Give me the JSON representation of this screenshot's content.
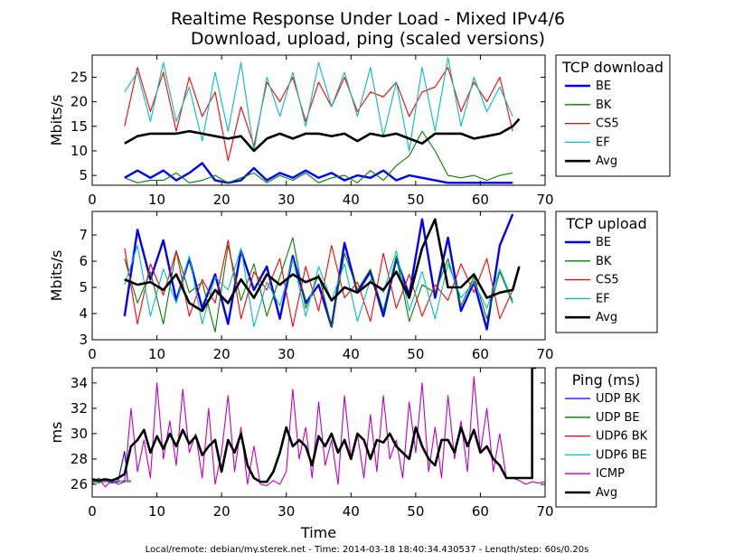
{
  "title_line1": "Realtime Response Under Load - Mixed IPv4/6",
  "title_line2": "Download, upload, ping (scaled versions)",
  "footer": "Local/remote: debian/my.sterek.net - Time: 2014-03-18 18:40:34.430537 - Length/step: 60s/0.20s",
  "colors": {
    "BE": "#0000ff",
    "BK": "#008000",
    "CS5": "#ff0000",
    "EF": "#00bfbf",
    "UDP BK": "#0000ff",
    "UDP BE": "#008000",
    "UDP6 BK": "#ff0000",
    "UDP6 BE": "#00bfbf",
    "ICMP": "#bf00bf",
    "Avg": "#000000"
  },
  "chart_data": [
    {
      "type": "line",
      "ylabel": "Mbits/s",
      "xlabel": "",
      "xlim": [
        0,
        70
      ],
      "ylim": [
        3,
        29.5
      ],
      "xticks": [
        "0",
        "10",
        "20",
        "30",
        "40",
        "50",
        "60",
        "70"
      ],
      "yticks": [
        "5",
        "10",
        "15",
        "20",
        "25"
      ],
      "legend_title": "TCP download",
      "legend_position": "outside-right",
      "series": [
        {
          "name": "BE",
          "x": [
            5,
            7,
            9,
            11,
            13,
            15,
            17,
            19,
            21,
            23,
            25,
            27,
            29,
            31,
            33,
            35,
            37,
            39,
            41,
            43,
            45,
            47,
            49,
            51,
            53,
            55,
            57,
            59,
            61,
            63,
            65
          ],
          "values": [
            4.5,
            6,
            4.5,
            6,
            4,
            5.5,
            7.5,
            4,
            3.5,
            4,
            6.5,
            4,
            5.5,
            4.5,
            6,
            4.5,
            5.5,
            4,
            5,
            4.5,
            6,
            4,
            5,
            4.5,
            4,
            3.5,
            3.5,
            3.5,
            3.5,
            3.5,
            3.5
          ]
        },
        {
          "name": "BK",
          "x": [
            5,
            7,
            9,
            11,
            13,
            15,
            17,
            19,
            21,
            23,
            25,
            27,
            29,
            31,
            33,
            35,
            37,
            39,
            41,
            43,
            45,
            47,
            49,
            51,
            53,
            55,
            57,
            59,
            61,
            63,
            65
          ],
          "values": [
            4.5,
            3.5,
            4,
            4,
            5.5,
            3.5,
            4,
            5,
            3.5,
            4.5,
            5.5,
            3.5,
            5,
            4,
            5.5,
            3.5,
            4.5,
            5,
            3.5,
            6,
            4,
            7,
            9,
            14,
            10,
            5,
            4.5,
            5,
            4,
            5,
            5.5
          ]
        },
        {
          "name": "CS5",
          "x": [
            5,
            7,
            9,
            11,
            13,
            15,
            17,
            19,
            21,
            23,
            25,
            27,
            29,
            31,
            33,
            35,
            37,
            39,
            41,
            43,
            45,
            47,
            49,
            51,
            53,
            55,
            57,
            59,
            61,
            63,
            65
          ],
          "values": [
            15,
            27,
            18,
            26,
            14,
            25,
            17,
            22,
            8,
            19,
            11,
            24,
            20,
            25,
            16,
            24,
            19,
            25,
            18,
            22,
            21,
            24,
            17,
            22,
            23,
            27,
            18,
            24,
            20,
            25,
            14
          ]
        },
        {
          "name": "EF",
          "x": [
            5,
            7,
            9,
            11,
            13,
            15,
            17,
            19,
            21,
            23,
            25,
            27,
            29,
            31,
            33,
            35,
            37,
            39,
            41,
            43,
            45,
            47,
            49,
            51,
            53,
            55,
            57,
            59,
            61,
            63,
            65
          ],
          "values": [
            22,
            26,
            16,
            28,
            16,
            23,
            12,
            26,
            14,
            28,
            10,
            25,
            17,
            26,
            15,
            28,
            19,
            26,
            17,
            27,
            13,
            24,
            10,
            27,
            14,
            29,
            15,
            25,
            18,
            23,
            17
          ]
        },
        {
          "name": "Avg",
          "x": [
            5,
            7,
            9,
            11,
            13,
            15,
            17,
            19,
            21,
            23,
            25,
            27,
            29,
            31,
            33,
            35,
            37,
            39,
            41,
            43,
            45,
            47,
            49,
            51,
            53,
            55,
            57,
            59,
            61,
            63,
            65,
            66
          ],
          "values": [
            11.5,
            13,
            13.5,
            13.5,
            13.5,
            14,
            13.5,
            13,
            12.5,
            13,
            10,
            12.5,
            13.5,
            12.5,
            13.5,
            13.5,
            13,
            13.5,
            12,
            13.5,
            13,
            13.5,
            12.5,
            11.5,
            13.5,
            13.5,
            13.5,
            12.5,
            13,
            13.5,
            15,
            16.5
          ]
        }
      ]
    },
    {
      "type": "line",
      "ylabel": "Mbits/s",
      "xlabel": "",
      "xlim": [
        0,
        70
      ],
      "ylim": [
        3,
        7.9
      ],
      "xticks": [
        "0",
        "10",
        "20",
        "30",
        "40",
        "50",
        "60",
        "70"
      ],
      "yticks": [
        "3",
        "4",
        "5",
        "6",
        "7"
      ],
      "legend_title": "TCP upload",
      "legend_position": "outside-right",
      "series": [
        {
          "name": "BE",
          "x": [
            5,
            7,
            9,
            11,
            13,
            15,
            17,
            19,
            21,
            23,
            25,
            27,
            29,
            31,
            33,
            35,
            37,
            39,
            41,
            43,
            45,
            47,
            49,
            51,
            53,
            55,
            57,
            59,
            61,
            63,
            65
          ],
          "values": [
            3.9,
            7.2,
            5.3,
            6.8,
            4.5,
            6.1,
            4.2,
            5.5,
            3.6,
            6.4,
            4.9,
            5.8,
            3.8,
            6.2,
            4.4,
            5.1,
            3.5,
            6.7,
            4.8,
            5.6,
            3.9,
            6.1,
            4.7,
            7.6,
            4.6,
            6.9,
            4.1,
            5.2,
            3.4,
            6.6,
            7.8
          ]
        },
        {
          "name": "BK",
          "x": [
            5,
            7,
            9,
            11,
            13,
            15,
            17,
            19,
            21,
            23,
            25,
            27,
            29,
            31,
            33,
            35,
            37,
            39,
            41,
            43,
            45,
            47,
            49,
            51,
            53,
            55,
            57,
            59,
            61,
            63,
            65
          ],
          "values": [
            6.1,
            4.4,
            5.6,
            3.6,
            6.4,
            4.8,
            5.2,
            3.3,
            6.6,
            4.5,
            5.9,
            3.9,
            5.4,
            6.9,
            4.2,
            5.5,
            3.5,
            6.3,
            4.9,
            5.7,
            4.1,
            6.2,
            3.7,
            5.1,
            4.8,
            6.1,
            4.3,
            5.4,
            3.8,
            5.6,
            4.4
          ]
        },
        {
          "name": "CS5",
          "x": [
            5,
            7,
            9,
            11,
            13,
            15,
            17,
            19,
            21,
            23,
            25,
            27,
            29,
            31,
            33,
            35,
            37,
            39,
            41,
            43,
            45,
            47,
            49,
            51,
            53,
            55,
            57,
            59,
            61,
            63,
            65
          ],
          "values": [
            6.5,
            3.6,
            5.9,
            4.7,
            6.4,
            3.9,
            5.3,
            4.4,
            6.8,
            3.8,
            5.6,
            4.9,
            6.1,
            3.5,
            5.8,
            4.1,
            6.6,
            4.6,
            5.2,
            3.7,
            6.3,
            4.2,
            5.5,
            3.9,
            5.1,
            4.5,
            5.9,
            4.8,
            6.1,
            3.8,
            4.9
          ]
        },
        {
          "name": "EF",
          "x": [
            5,
            7,
            9,
            11,
            13,
            15,
            17,
            19,
            21,
            23,
            25,
            27,
            29,
            31,
            33,
            35,
            37,
            39,
            41,
            43,
            45,
            47,
            49,
            51,
            53,
            55,
            57,
            59,
            61,
            63,
            65
          ],
          "values": [
            5.1,
            6.6,
            3.9,
            5.7,
            4.4,
            6.2,
            3.6,
            5.4,
            4.9,
            6.5,
            3.5,
            5.2,
            4.3,
            6.1,
            3.9,
            5.8,
            4.5,
            5.9,
            3.7,
            5.3,
            4.8,
            6.4,
            4.1,
            5.6,
            3.8,
            5.9,
            4.6,
            5.2,
            4.2,
            5.7,
            4.5
          ]
        },
        {
          "name": "Avg",
          "x": [
            5,
            7,
            9,
            11,
            13,
            15,
            17,
            19,
            21,
            23,
            25,
            27,
            29,
            31,
            33,
            35,
            37,
            39,
            41,
            43,
            45,
            47,
            49,
            51,
            53,
            55,
            57,
            59,
            61,
            63,
            65,
            66
          ],
          "values": [
            5.3,
            5.1,
            5.2,
            4.9,
            5.5,
            4.4,
            4.1,
            4.9,
            4.4,
            5.3,
            4.6,
            5.5,
            5.1,
            5.5,
            5.2,
            5.4,
            4.5,
            5.0,
            4.8,
            5.2,
            4.9,
            5.6,
            4.6,
            6.5,
            7.6,
            5.0,
            5.0,
            5.5,
            4.6,
            4.8,
            4.9,
            5.8
          ]
        }
      ]
    },
    {
      "type": "line",
      "ylabel": "ms",
      "xlabel": "Time",
      "xlim": [
        0,
        70
      ],
      "ylim": [
        25,
        35.2
      ],
      "xticks": [
        "0",
        "10",
        "20",
        "30",
        "40",
        "50",
        "60",
        "70"
      ],
      "yticks": [
        "26",
        "28",
        "30",
        "32",
        "34"
      ],
      "legend_title": "Ping (ms)",
      "legend_position": "outside-right",
      "series": [
        {
          "name": "UDP BK",
          "x": [
            0,
            1,
            2,
            3,
            4,
            5,
            5.5,
            6
          ],
          "values": [
            26.3,
            26.2,
            26.3,
            26.1,
            26.2,
            28.6,
            26.2,
            26.3
          ]
        },
        {
          "name": "UDP BE",
          "x": [
            0,
            1,
            2,
            3,
            4,
            5,
            6
          ],
          "values": [
            26.3,
            26.1,
            26.3,
            26.2,
            26.3,
            26.2,
            26.3
          ]
        },
        {
          "name": "UDP6 BK",
          "x": [
            0,
            1,
            2,
            3,
            4,
            5,
            6
          ],
          "values": [
            26.2,
            26.3,
            26.2,
            26.3,
            26.2,
            26.3,
            26.2
          ]
        },
        {
          "name": "UDP6 BE",
          "x": [
            0,
            1,
            2,
            3,
            4,
            5,
            6
          ],
          "values": [
            26.3,
            26.2,
            26.3,
            26.2,
            26.3,
            26.2,
            26.3
          ]
        },
        {
          "name": "ICMP",
          "x": [
            0,
            1,
            2,
            3,
            4,
            5,
            6,
            7,
            8,
            9,
            10,
            11,
            12,
            13,
            14,
            15,
            16,
            17,
            18,
            19,
            20,
            21,
            22,
            23,
            24,
            25,
            26,
            27,
            28,
            29,
            30,
            31,
            32,
            33,
            34,
            35,
            36,
            37,
            38,
            39,
            40,
            41,
            42,
            43,
            44,
            45,
            46,
            47,
            48,
            49,
            50,
            51,
            52,
            53,
            54,
            55,
            56,
            57,
            58,
            59,
            60,
            61,
            62,
            63,
            64,
            65,
            66,
            67,
            68,
            69,
            70
          ],
          "values": [
            26.0,
            26.5,
            25.8,
            26.3,
            26.0,
            26.2,
            32.0,
            27.0,
            29.5,
            26.5,
            34.0,
            28.0,
            31.0,
            27.5,
            33.5,
            28.5,
            30.0,
            26.5,
            32.0,
            26.0,
            28.5,
            33.0,
            27.0,
            30.5,
            26.0,
            29.0,
            26.0,
            25.9,
            26.3,
            26.0,
            27.0,
            33.5,
            28.0,
            30.5,
            26.5,
            32.5,
            27.5,
            29.5,
            26.0,
            33.0,
            28.0,
            30.0,
            26.5,
            31.5,
            27.0,
            33.0,
            28.0,
            29.5,
            26.5,
            32.5,
            28.5,
            34.0,
            27.0,
            30.5,
            26.5,
            33.0,
            28.0,
            31.0,
            27.0,
            34.5,
            28.5,
            32.0,
            27.0,
            30.0,
            26.5,
            26.5,
            26.3,
            26.0,
            26.2,
            26.1,
            26.2
          ]
        },
        {
          "name": "Avg",
          "x": [
            0,
            1,
            2,
            3,
            4,
            5,
            6,
            7,
            8,
            9,
            10,
            11,
            12,
            13,
            14,
            15,
            16,
            17,
            18,
            19,
            20,
            21,
            22,
            23,
            24,
            25,
            26,
            27,
            28,
            29,
            30,
            31,
            32,
            33,
            34,
            35,
            36,
            37,
            38,
            39,
            40,
            41,
            42,
            43,
            44,
            45,
            46,
            47,
            48,
            49,
            50,
            51,
            52,
            53,
            54,
            55,
            56,
            57,
            58,
            59,
            60,
            61,
            62,
            63,
            64,
            65,
            66,
            67,
            68,
            68,
            68.6
          ],
          "values": [
            26.4,
            26.3,
            26.4,
            26.3,
            26.5,
            26.8,
            29.0,
            29.5,
            30.3,
            28.5,
            29.8,
            28.8,
            30.0,
            29.0,
            30.3,
            29.2,
            29.8,
            28.3,
            29.0,
            29.5,
            27.0,
            29.5,
            28.5,
            30.0,
            27.5,
            26.5,
            26.2,
            26.2,
            27.0,
            28.5,
            30.5,
            29.0,
            29.5,
            29.0,
            27.5,
            29.8,
            29.0,
            30.0,
            28.5,
            29.5,
            28.0,
            30.0,
            29.5,
            28.0,
            29.5,
            29.3,
            30.0,
            29.0,
            28.5,
            28.0,
            30.5,
            29.0,
            28.0,
            27.5,
            29.5,
            29.5,
            28.5,
            30.5,
            29.0,
            30.3,
            28.5,
            29.0,
            28.0,
            27.5,
            26.5,
            26.5,
            26.5,
            26.5,
            26.5,
            35.2,
            35.2
          ]
        }
      ]
    }
  ]
}
